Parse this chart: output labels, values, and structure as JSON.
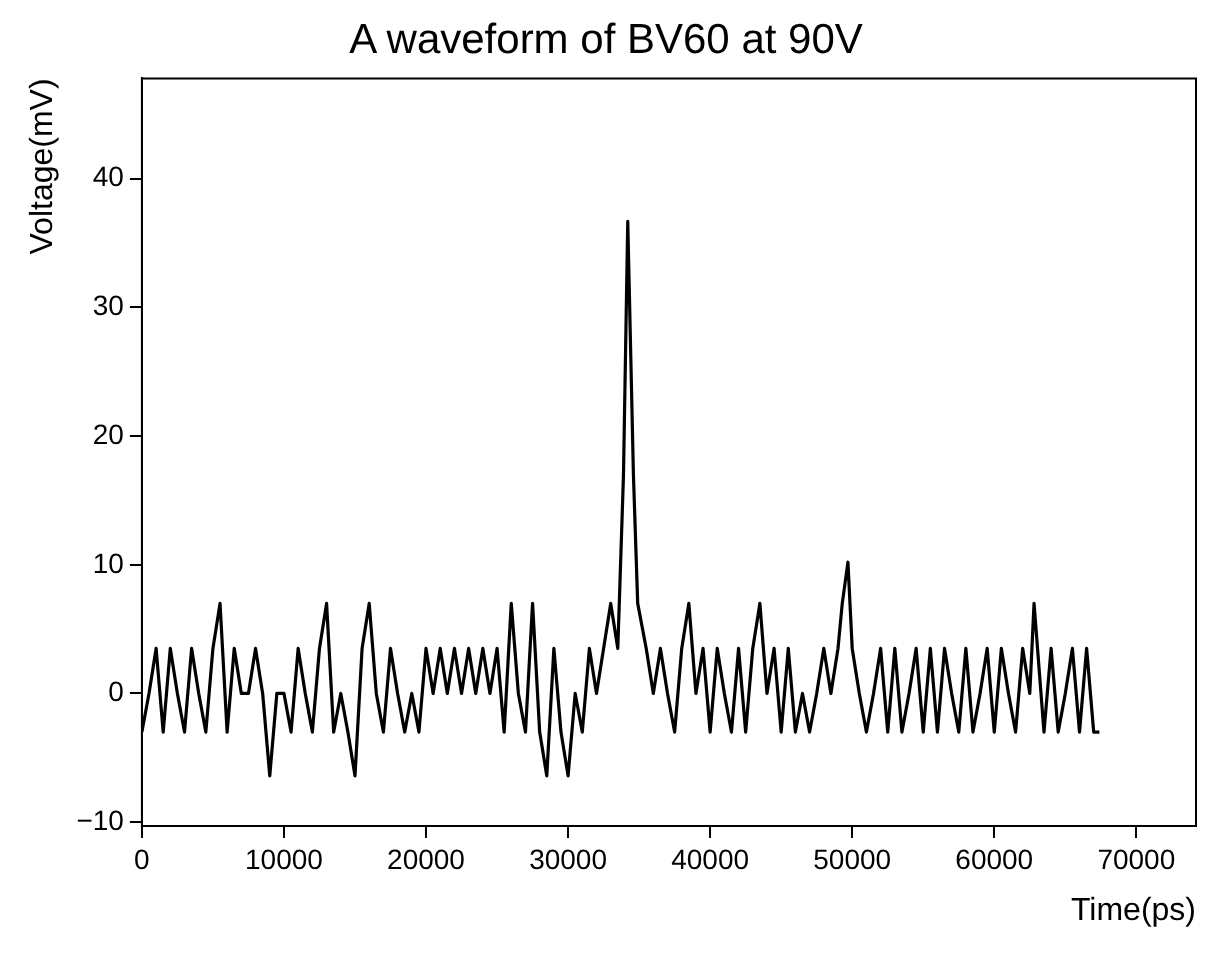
{
  "chart_data": {
    "type": "line",
    "title": "A waveform of BV60 at 90V",
    "xlabel": "Time(ps)",
    "ylabel": "Voltage(mV)",
    "x": [
      0,
      500,
      1000,
      1500,
      2000,
      2500,
      3000,
      3500,
      4000,
      4500,
      5000,
      5500,
      6000,
      6500,
      7000,
      7500,
      8000,
      8500,
      9000,
      9500,
      10000,
      10500,
      11000,
      11500,
      12000,
      12500,
      13000,
      13500,
      14000,
      14500,
      15000,
      15500,
      16000,
      16500,
      17000,
      17500,
      18000,
      18500,
      19000,
      19500,
      20000,
      20500,
      21000,
      21500,
      22000,
      22500,
      23000,
      23500,
      24000,
      24500,
      25000,
      25500,
      26000,
      26500,
      27000,
      27500,
      28000,
      28500,
      29000,
      29500,
      30000,
      30500,
      31000,
      31500,
      32000,
      32500,
      33000,
      33500,
      33900,
      34200,
      34600,
      34900,
      35500,
      36000,
      36500,
      37000,
      37500,
      38000,
      38500,
      39000,
      39500,
      40000,
      40500,
      41000,
      41500,
      42000,
      42500,
      43000,
      43500,
      44000,
      44500,
      45000,
      45500,
      46000,
      46500,
      47000,
      47500,
      48000,
      48500,
      49000,
      49300,
      49700,
      50000,
      50500,
      51000,
      51500,
      52000,
      52500,
      53000,
      53500,
      54000,
      54500,
      55000,
      55500,
      56000,
      56500,
      57000,
      57500,
      58000,
      58500,
      59000,
      59500,
      60000,
      60500,
      61000,
      61500,
      62000,
      62500,
      62800,
      63500,
      64000,
      64500,
      65000,
      65500,
      66000,
      66500,
      67000,
      67400
    ],
    "series": [
      {
        "color": "#000000",
        "values": [
          -3,
          0,
          3.5,
          -3,
          3.5,
          0,
          -3,
          3.5,
          0,
          -3,
          3.5,
          7,
          -3,
          3.5,
          0,
          0,
          3.5,
          0,
          -6.4,
          0,
          0,
          -3,
          3.5,
          0,
          -3,
          3.5,
          7,
          -3,
          0,
          -3,
          -6.4,
          3.5,
          7,
          0,
          -3,
          3.5,
          0,
          -3,
          0,
          -3,
          3.5,
          0,
          3.5,
          0,
          3.5,
          0,
          3.5,
          0,
          3.5,
          0,
          3.5,
          -3,
          7,
          0,
          -3,
          7,
          -3,
          -6.4,
          3.5,
          -3,
          -6.4,
          0,
          -3,
          3.5,
          0,
          3.5,
          7,
          3.5,
          17,
          36.7,
          17,
          7,
          3.5,
          0,
          3.5,
          0,
          -3,
          3.5,
          7,
          0,
          3.5,
          -3,
          3.5,
          0,
          -3,
          3.5,
          -3,
          3.5,
          7,
          0,
          3.5,
          -3,
          3.5,
          -3,
          0,
          -3,
          0,
          3.5,
          0,
          3.5,
          7,
          10.2,
          3.5,
          0,
          -3,
          0,
          3.5,
          -3,
          3.5,
          -3,
          0,
          3.5,
          -3,
          3.5,
          -3,
          3.5,
          0,
          -3,
          3.5,
          -3,
          0,
          3.5,
          -3,
          3.5,
          0,
          -3,
          3.5,
          0,
          7,
          -3,
          3.5,
          -3,
          0,
          3.5,
          -3,
          3.5,
          -3,
          -3
        ]
      }
    ],
    "xlim": [
      0,
      74200
    ],
    "ylim": [
      -10.3,
      47.8
    ],
    "xticks": [
      0,
      10000,
      20000,
      30000,
      40000,
      50000,
      60000,
      70000
    ],
    "yticks": [
      -10,
      0,
      10,
      20,
      30,
      40
    ],
    "grid": false,
    "legend": false,
    "marker": "none",
    "line_style": "solid"
  }
}
